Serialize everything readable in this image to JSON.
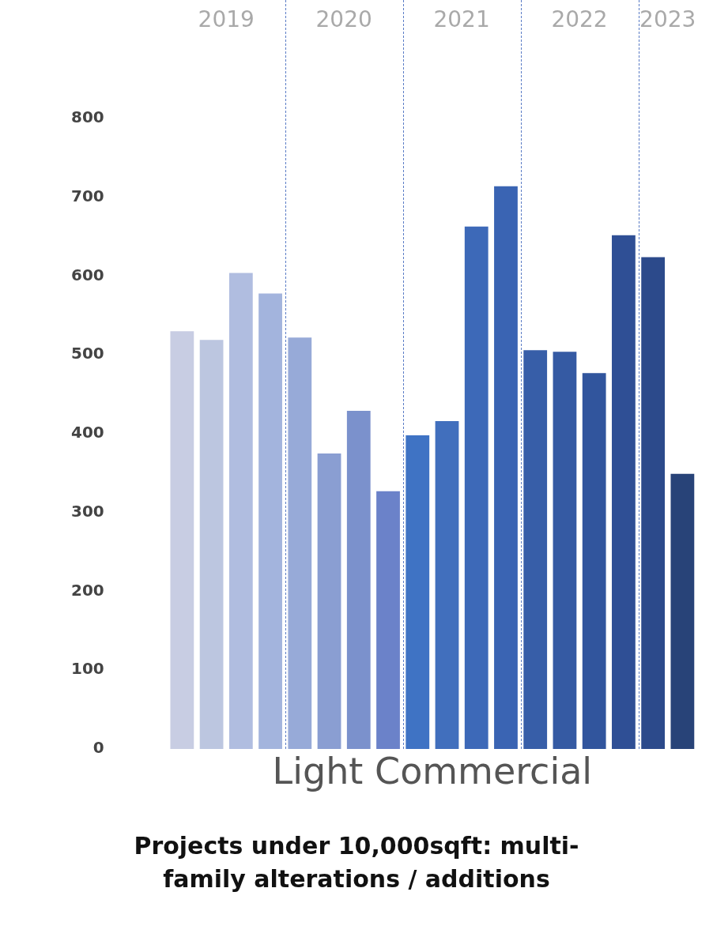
{
  "chart_data": {
    "type": "bar",
    "title": "Projects under 10,000sqft: multi-family alterations / additions",
    "xlabel": "Light Commercial",
    "categories": [
      null,
      null,
      null,
      null,
      null,
      null,
      null,
      null,
      null,
      null,
      null,
      null,
      null,
      null,
      null,
      null,
      null,
      null
    ],
    "values": [
      530,
      519,
      604,
      578,
      522,
      375,
      429,
      327,
      398,
      416,
      663,
      714,
      506,
      504,
      477,
      652,
      624,
      349
    ],
    "colors": [
      "#c8cde3",
      "#bcc6e0",
      "#b0bde0",
      "#a3b4dd",
      "#97aad8",
      "#8a9ed2",
      "#7b91cc",
      "#6b82c9",
      "#3f73c4",
      "#416fbd",
      "#3d69b8",
      "#3a64b3",
      "#375ea8",
      "#355aa3",
      "#31559d",
      "#2f4f95",
      "#2c4a8b",
      "#284378"
    ],
    "ylim": [
      0,
      800
    ],
    "yticks": [
      0,
      100,
      200,
      300,
      400,
      500,
      600,
      700,
      800
    ],
    "tick_labels": "y",
    "grid": false,
    "legend": false,
    "annotations": [
      "2019",
      "2020",
      "2021",
      "2022",
      "2023"
    ]
  }
}
